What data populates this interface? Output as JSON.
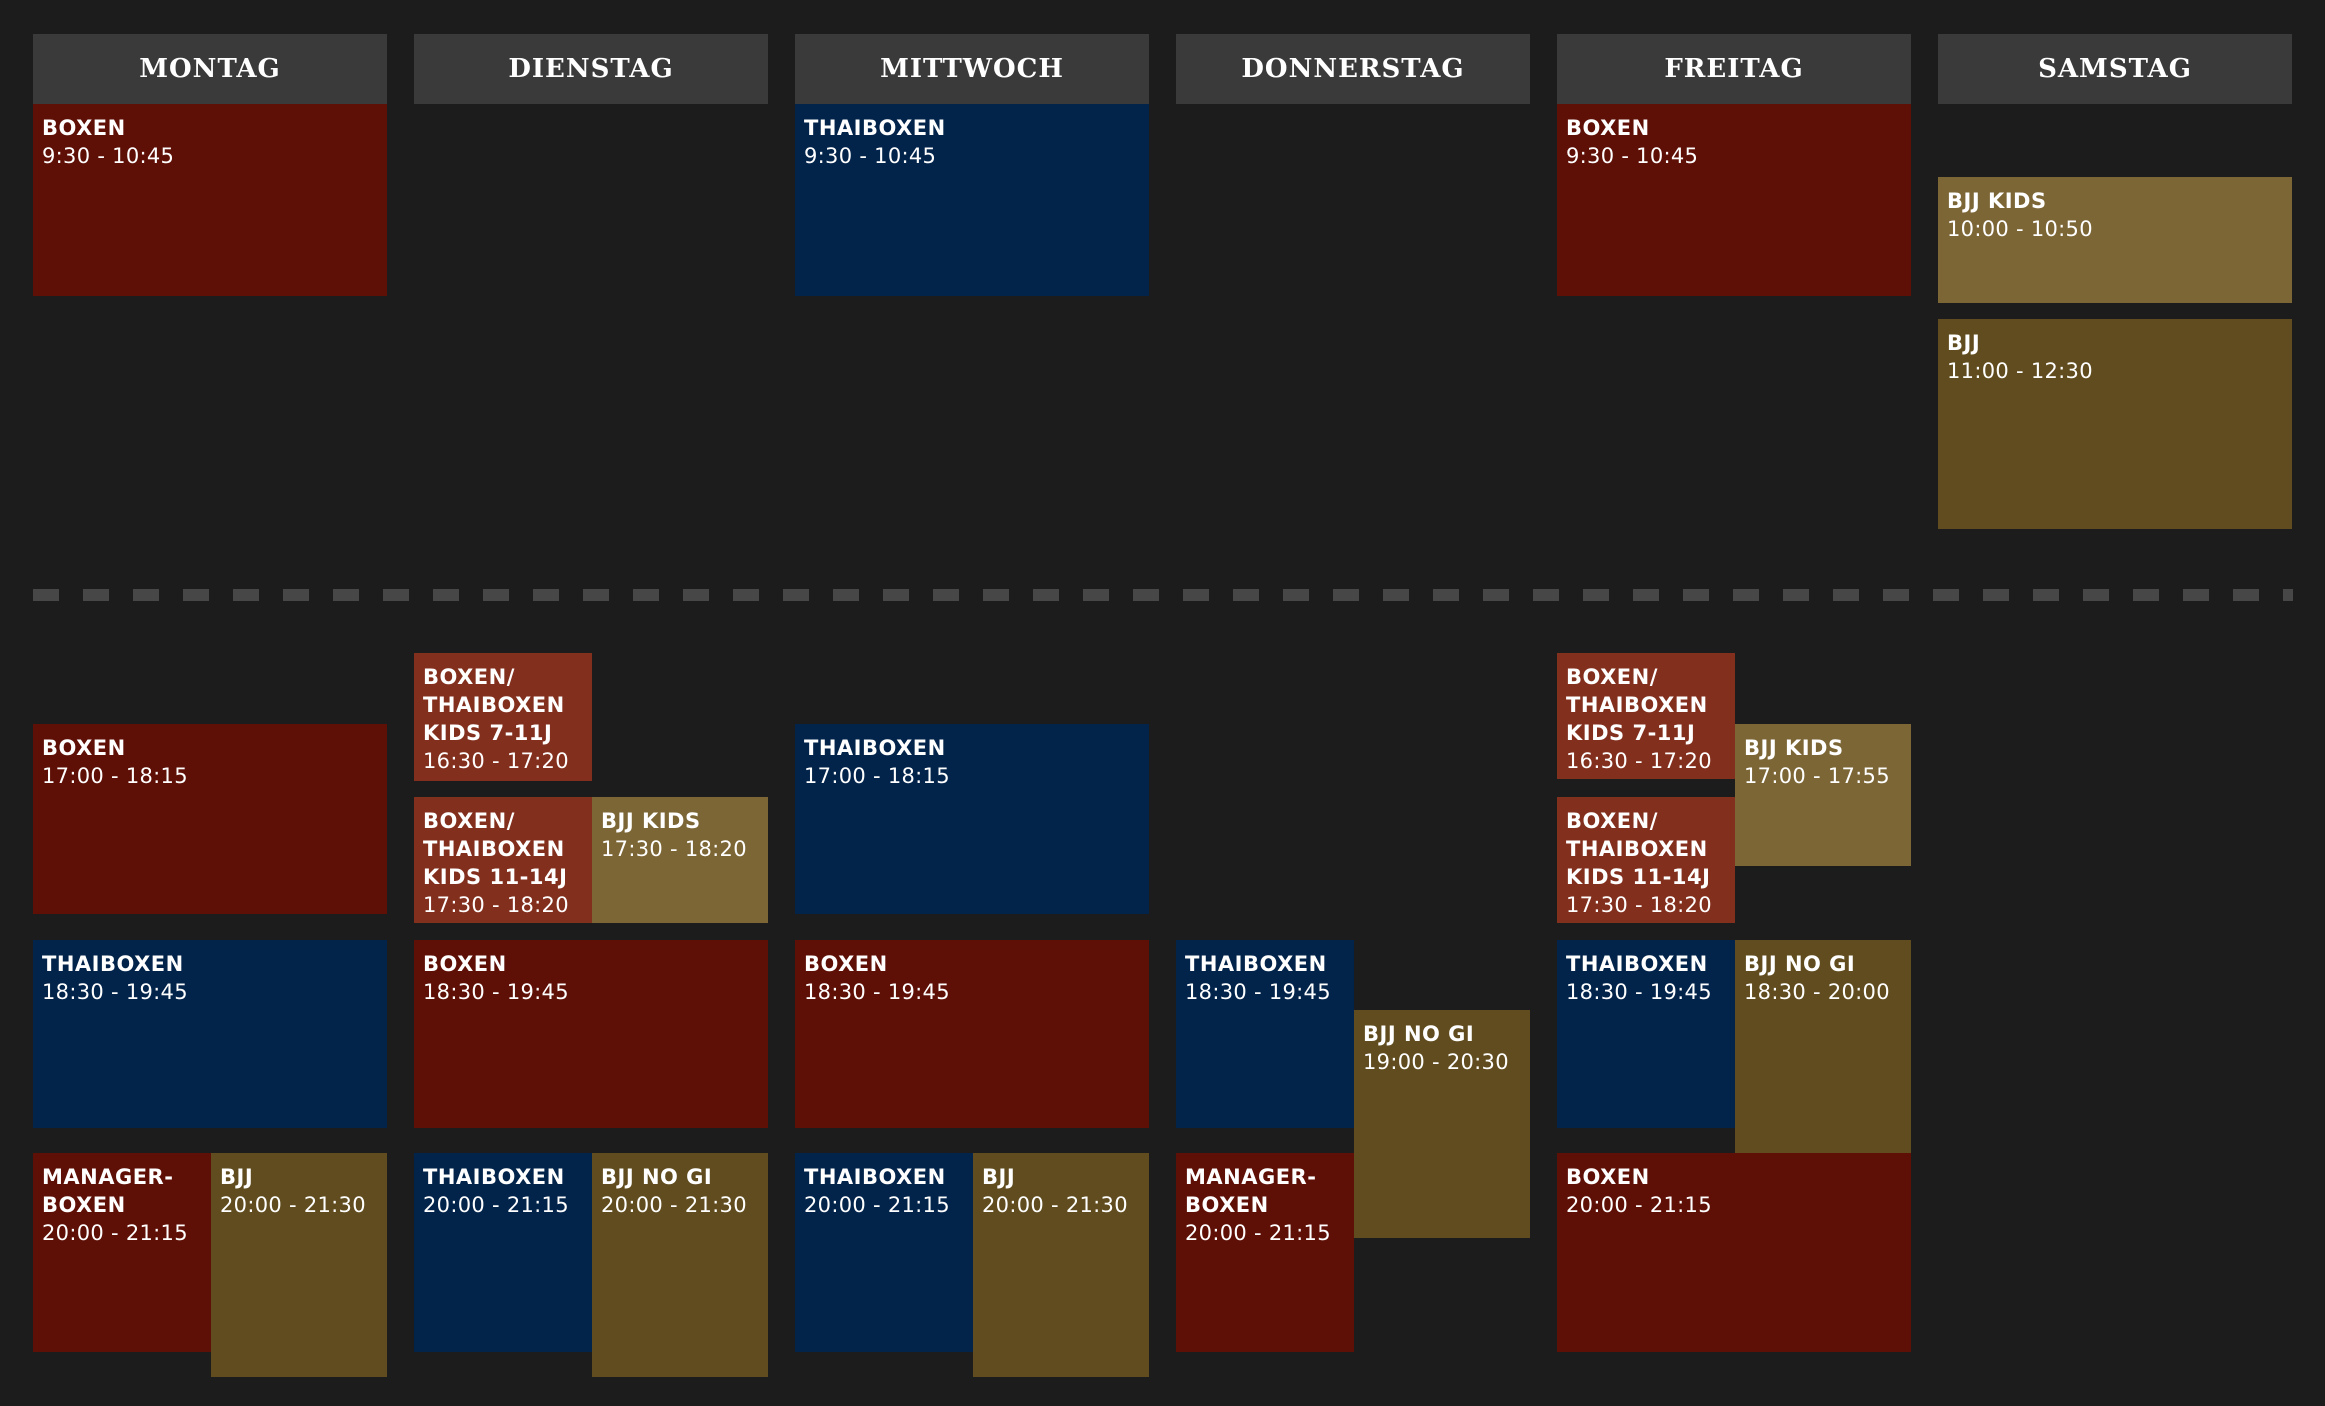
{
  "days": [
    "MONTAG",
    "DIENSTAG",
    "MITTWOCH",
    "DONNERSTAG",
    "FREITAG",
    "SAMSTAG"
  ],
  "colors": {
    "boxen": "#5e0f06",
    "kids_boxen": "#832f1e",
    "thaiboxen": "#02234a",
    "bjj_kids": "#7c6636",
    "bjj": "#604c1e",
    "background": "#1c1c1c",
    "header": "#3a3a3a"
  },
  "classes": {
    "mo_boxen_am": {
      "name": "BOXEN",
      "time": "9:30 - 10:45"
    },
    "mi_thai_am": {
      "name": "THAIBOXEN",
      "time": "9:30 - 10:45"
    },
    "fr_boxen_am": {
      "name": "BOXEN",
      "time": "9:30 - 10:45"
    },
    "sa_bjjkids": {
      "name": "BJJ KIDS",
      "time": "10:00 - 10:50"
    },
    "sa_bjj": {
      "name": "BJJ",
      "time": "11:00 - 12:30"
    },
    "mo_boxen_pm": {
      "name": "BOXEN",
      "time": "17:00 - 18:15"
    },
    "mo_thai": {
      "name": "THAIBOXEN",
      "time": "18:30 - 19:45"
    },
    "mo_manager": {
      "name": "MANAGER-\nBOXEN",
      "time": "20:00 - 21:15"
    },
    "mo_bjj": {
      "name": "BJJ",
      "time": "20:00 - 21:30"
    },
    "di_kids711": {
      "name": "BOXEN/\nTHAIBOXEN\nKIDS 7-11J",
      "time": "16:30 - 17:20"
    },
    "di_kids1114": {
      "name": "BOXEN/\nTHAIBOXEN\nKIDS 11-14J",
      "time": "17:30 - 18:20"
    },
    "di_bjjkids": {
      "name": "BJJ KIDS",
      "time": "17:30 - 18:20"
    },
    "di_boxen": {
      "name": "BOXEN",
      "time": "18:30 - 19:45"
    },
    "di_thai": {
      "name": "THAIBOXEN",
      "time": "20:00 - 21:15"
    },
    "di_nogi": {
      "name": "BJJ NO GI",
      "time": "20:00 - 21:30"
    },
    "mi_thai_pm": {
      "name": "THAIBOXEN",
      "time": "17:00 - 18:15"
    },
    "mi_boxen": {
      "name": "BOXEN",
      "time": "18:30 - 19:45"
    },
    "mi_thai2": {
      "name": "THAIBOXEN",
      "time": "20:00 - 21:15"
    },
    "mi_bjj": {
      "name": "BJJ",
      "time": "20:00 - 21:30"
    },
    "do_thai": {
      "name": "THAIBOXEN",
      "time": "18:30 - 19:45"
    },
    "do_nogi": {
      "name": "BJJ NO GI",
      "time": "19:00 - 20:30"
    },
    "do_manager": {
      "name": "MANAGER-\nBOXEN",
      "time": "20:00 - 21:15"
    },
    "fr_kids711": {
      "name": "BOXEN/\nTHAIBOXEN\nKIDS 7-11J",
      "time": "16:30 - 17:20"
    },
    "fr_kids1114": {
      "name": "BOXEN/\nTHAIBOXEN\nKIDS 11-14J",
      "time": "17:30 - 18:20"
    },
    "fr_bjjkids": {
      "name": "BJJ KIDS",
      "time": "17:00 - 17:55"
    },
    "fr_thai": {
      "name": "THAIBOXEN",
      "time": "18:30 - 19:45"
    },
    "fr_nogi": {
      "name": "BJJ NO GI",
      "time": "18:30 - 20:00"
    },
    "fr_boxen_pm": {
      "name": "BOXEN",
      "time": "20:00 - 21:15"
    }
  }
}
